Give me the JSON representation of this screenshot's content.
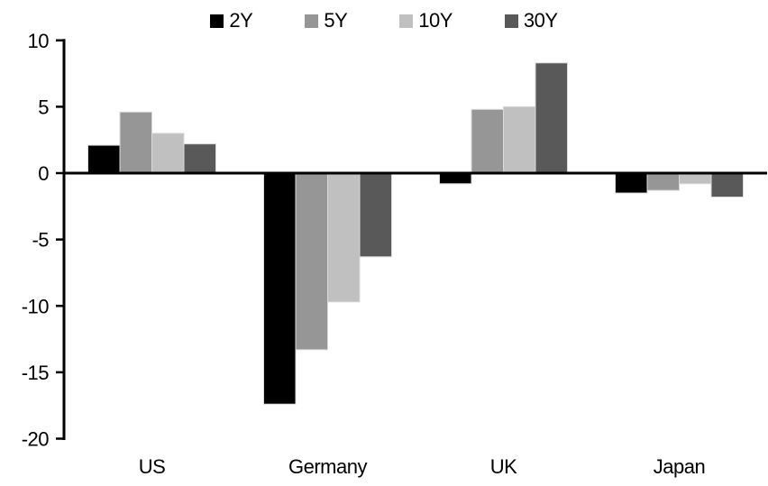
{
  "chart_data": {
    "type": "bar",
    "title": "",
    "categories": [
      "US",
      "Germany",
      "UK",
      "Japan"
    ],
    "series": [
      {
        "name": "2Y",
        "color": "#000000",
        "values": [
          2.1,
          -17.4,
          -0.8,
          -1.5
        ]
      },
      {
        "name": "5Y",
        "color": "#969696",
        "values": [
          4.6,
          -13.3,
          4.8,
          -1.3
        ]
      },
      {
        "name": "10Y",
        "color": "#c0c0c0",
        "values": [
          3.0,
          -9.7,
          5.0,
          -0.8
        ]
      },
      {
        "name": "30Y",
        "color": "#595959",
        "values": [
          2.2,
          -6.3,
          8.3,
          -1.8
        ]
      }
    ],
    "xlabel": "",
    "ylabel": "",
    "ylim": [
      -20,
      10
    ],
    "yticks": [
      10,
      5,
      0,
      -5,
      -10,
      -15,
      -20
    ],
    "grid": false,
    "legend_position": "top-center",
    "colors": {
      "axis": "#000000",
      "background": "#ffffff",
      "bar_border": "#d9d9d9"
    }
  }
}
